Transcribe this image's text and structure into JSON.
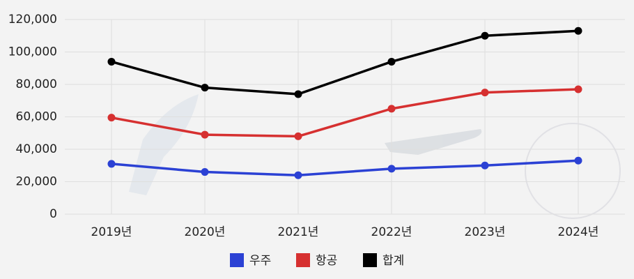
{
  "chart_data": {
    "type": "line",
    "categories": [
      "2019년",
      "2020년",
      "2021년",
      "2022년",
      "2023년",
      "2024년"
    ],
    "series": [
      {
        "name": "우주",
        "color": "#2b41d4",
        "values": [
          31000,
          26000,
          24000,
          28000,
          30000,
          33000
        ]
      },
      {
        "name": "항공",
        "color": "#d63030",
        "values": [
          59500,
          49000,
          48000,
          65000,
          75000,
          77000
        ]
      },
      {
        "name": "합계",
        "color": "#000000",
        "values": [
          94000,
          78000,
          74000,
          94000,
          110000,
          113000
        ]
      }
    ],
    "ylim": [
      0,
      120000
    ],
    "yticks": [
      0,
      {
        "value": 20000,
        "label": "20,000"
      },
      {
        "value": 40000,
        "label": "40,000"
      },
      {
        "value": 60000,
        "label": "60,000"
      },
      {
        "value": 80000,
        "label": "80,000"
      },
      {
        "value": 100000,
        "label": "100,000"
      },
      {
        "value": 120000,
        "label": "120,000"
      }
    ],
    "grid": true,
    "legend": "bottom"
  }
}
